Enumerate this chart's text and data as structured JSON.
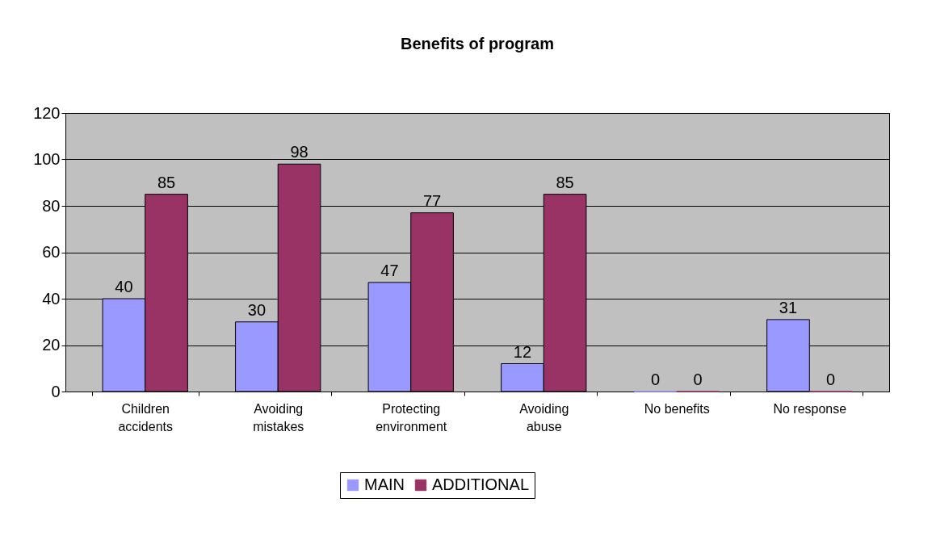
{
  "chart_data": {
    "type": "bar",
    "title": "Benefits of program",
    "categories": [
      "Children\naccidents",
      "Avoiding\nmistakes",
      "Protecting\nenvironment",
      "Avoiding\nabuse",
      "No benefits",
      "No response"
    ],
    "series": [
      {
        "name": "MAIN",
        "color": "#9999ff",
        "values": [
          40,
          30,
          47,
          12,
          0,
          31
        ]
      },
      {
        "name": "ADDITIONAL",
        "color": "#993366",
        "values": [
          85,
          98,
          77,
          85,
          0,
          0
        ]
      }
    ],
    "ylim": [
      0,
      120
    ],
    "yticks": [
      0,
      20,
      40,
      60,
      80,
      100,
      120
    ],
    "grid": "y",
    "legend": "bottom",
    "data_labels": true
  }
}
